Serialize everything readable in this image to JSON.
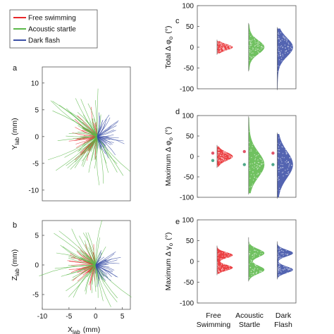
{
  "legend": {
    "items": [
      {
        "label": "Free swimming",
        "color": "#e8272a"
      },
      {
        "label": "Acoustic startle",
        "color": "#5cb84a"
      },
      {
        "label": "Dark flash",
        "color": "#3b4fa6"
      }
    ]
  },
  "colors": {
    "free": "#e8272a",
    "acoustic": "#5cb84a",
    "dark": "#3b4fa6",
    "pink_marker": "#e0556a",
    "teal_marker": "#4fa88a"
  },
  "chart_data": [
    {
      "panel": "a",
      "type": "line",
      "description_labels": {
        "xlabel": "",
        "ylabel_main": "Y",
        "ylabel_sub": "lab",
        "ylabel_unit": "(mm)"
      },
      "xlim": [
        -10,
        6
      ],
      "ylim": [
        -12,
        13
      ],
      "yticks": [
        "10",
        "5",
        "0",
        "-5",
        "-10"
      ],
      "ytick_values": [
        10,
        5,
        0,
        -5,
        -10
      ]
    },
    {
      "panel": "b",
      "type": "line",
      "description_labels": {
        "xlabel_main": "X",
        "xlabel_sub": "lab",
        "xlabel_unit": "(mm)",
        "ylabel_main": "Z",
        "ylabel_sub": "lab",
        "ylabel_unit": "(mm)"
      },
      "xlim": [
        -10,
        6.5
      ],
      "ylim": [
        -7.5,
        7.5
      ],
      "xticks": [
        "-10",
        "-5",
        "0",
        "5"
      ],
      "xtick_values": [
        -10,
        -5,
        0,
        5
      ],
      "yticks": [
        "5",
        "0",
        "-5"
      ],
      "ytick_values": [
        5,
        0,
        -5
      ]
    },
    {
      "panel": "c",
      "type": "violin",
      "ylabel_pre": "Total",
      "ylabel_sym": "Δ φ",
      "ylabel_sub": "o",
      "ylabel_unit": "(°)",
      "ylim": [
        -100,
        100
      ],
      "yticks": [
        "100",
        "50",
        "0",
        "-50",
        "-100"
      ],
      "ytick_values": [
        100,
        50,
        0,
        -50,
        -100
      ],
      "groups": [
        {
          "name": "Free swimming",
          "center": 0,
          "spread": 7,
          "min": -15,
          "max": 15
        },
        {
          "name": "Acoustic startle",
          "center": 0,
          "spread": 16,
          "min": -55,
          "max": 55
        },
        {
          "name": "Dark flash",
          "center": 0,
          "spread": 22,
          "min": -100,
          "max": 45
        }
      ]
    },
    {
      "panel": "d",
      "type": "violin",
      "ylabel_pre": "Maximum",
      "ylabel_sym": "Δ φ",
      "ylabel_sub": "o",
      "ylabel_unit": "(°)",
      "ylim": [
        -100,
        100
      ],
      "yticks": [
        "100",
        "50",
        "0",
        "-50",
        "-100"
      ],
      "ytick_values": [
        100,
        50,
        0,
        -50,
        -100
      ],
      "groups": [
        {
          "name": "Free swimming",
          "center": 0,
          "spread": 10,
          "min": -25,
          "max": 25,
          "markers": [
            8,
            -10
          ]
        },
        {
          "name": "Acoustic startle",
          "center": -20,
          "spread": 30,
          "min": -90,
          "max": 95,
          "markers": [
            12,
            -20
          ]
        },
        {
          "name": "Dark flash",
          "center": -20,
          "spread": 32,
          "min": -100,
          "max": 55,
          "markers": [
            8,
            -20
          ]
        }
      ]
    },
    {
      "panel": "e",
      "type": "violin",
      "ylabel_pre": "Maximum",
      "ylabel_sym": "Δ γ",
      "ylabel_sub": "o",
      "ylabel_unit": "(°)",
      "ylim": [
        -100,
        100
      ],
      "yticks": [
        "100",
        "50",
        "0",
        "-50",
        "-100"
      ],
      "ytick_values": [
        100,
        50,
        0,
        -50,
        -100
      ],
      "categories": [
        "Free Swimming",
        "Acoustic Startle",
        "Dark Flash"
      ],
      "groups": [
        {
          "name": "Free Swimming",
          "modes": [
            15,
            -15
          ],
          "spread": 7,
          "min": -30,
          "max": 35
        },
        {
          "name": "Acoustic Startle",
          "modes": [
            20,
            -20
          ],
          "spread": 10,
          "min": -45,
          "max": 55
        },
        {
          "name": "Dark Flash",
          "modes": [
            20,
            -20
          ],
          "spread": 8,
          "min": -40,
          "max": 45
        }
      ]
    }
  ],
  "panel_letters": [
    "a",
    "b",
    "c",
    "d",
    "e"
  ],
  "category_lines": [
    {
      "line1": "Free",
      "line2": "Swimming"
    },
    {
      "line1": "Acoustic",
      "line2": "Startle"
    },
    {
      "line1": "Dark",
      "line2": "Flash"
    }
  ]
}
